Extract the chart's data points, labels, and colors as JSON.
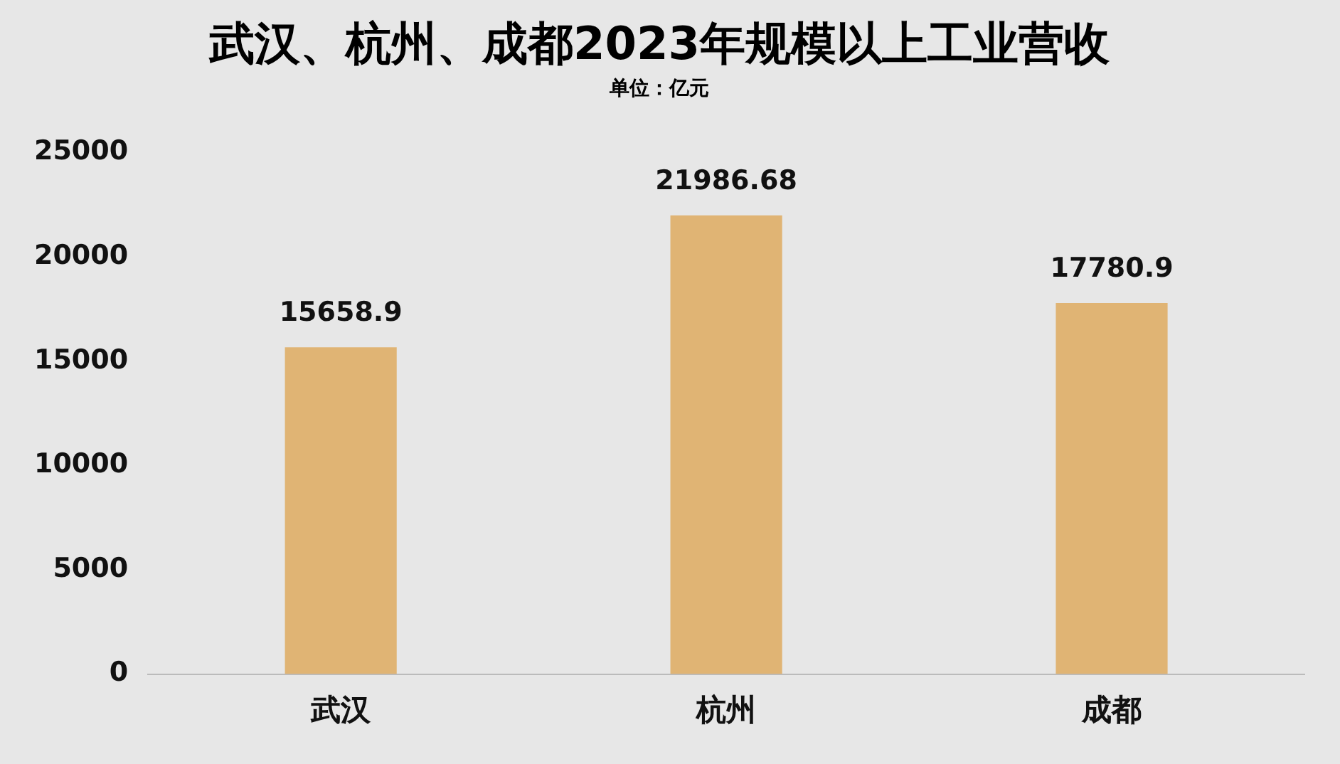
{
  "chart_data": {
    "type": "bar",
    "title": "武汉、杭州、成都2023年规模以上工业营收",
    "subtitle": "单位：亿元",
    "categories": [
      "武汉",
      "杭州",
      "成都"
    ],
    "values": [
      15658.9,
      21986.68,
      17780.9
    ],
    "color": "#e0b474",
    "ylim": [
      0,
      25000
    ],
    "yticks": [
      0,
      5000,
      10000,
      15000,
      20000,
      25000
    ],
    "grid": false,
    "data_labels": true
  }
}
